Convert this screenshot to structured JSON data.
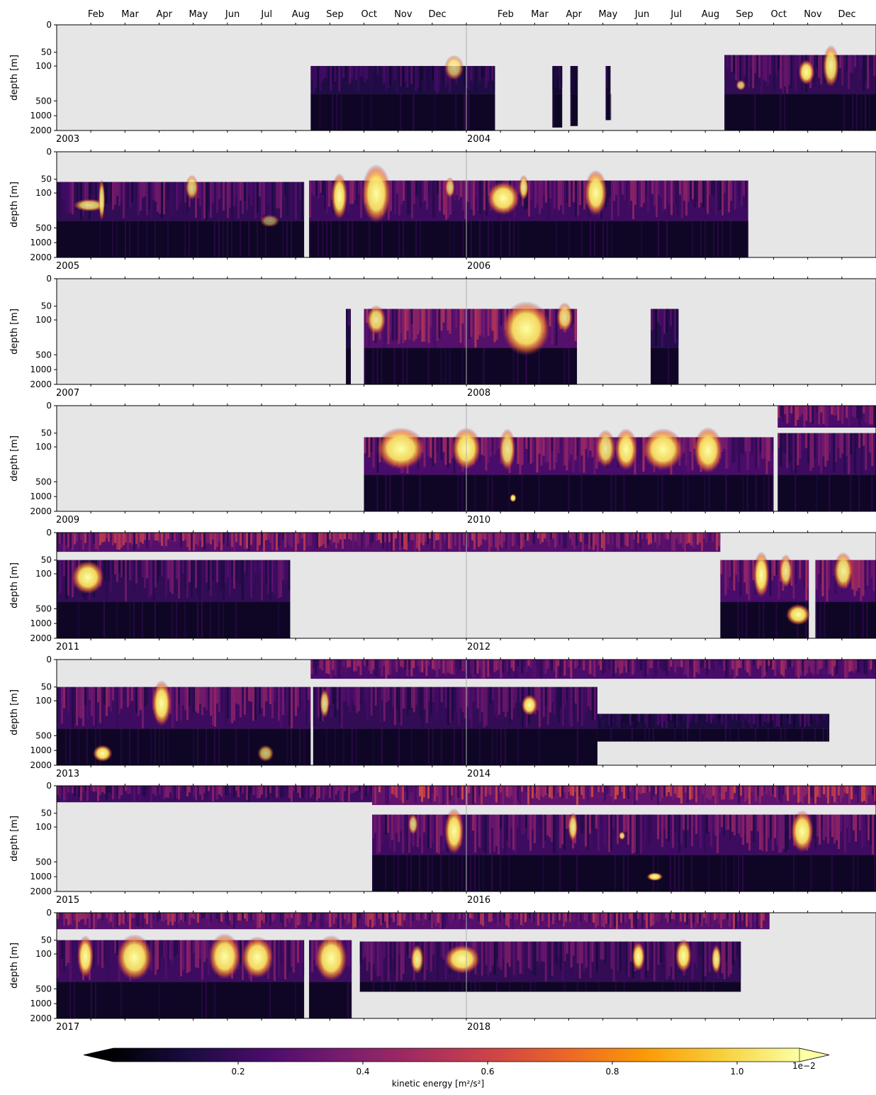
{
  "chart_data": {
    "type": "heatmap",
    "top_month_labels": [
      "Feb",
      "Mar",
      "Apr",
      "May",
      "Jun",
      "Jul",
      "Aug",
      "Sep",
      "Oct",
      "Nov",
      "Dec",
      "Feb",
      "Mar",
      "Apr",
      "May",
      "Jun",
      "Jul",
      "Aug",
      "Sep",
      "Oct",
      "Nov",
      "Dec"
    ],
    "ylabel": "depth [m]",
    "yticks": [
      "0",
      "50",
      "100",
      "500",
      "1000",
      "2000"
    ],
    "colors": {
      "nodata": "#e6e6e6",
      "axis": "#000000",
      "midline": "#b0b0b0"
    },
    "colormap": [
      "#000004",
      "#1b0c41",
      "#4a0c6b",
      "#781c6d",
      "#a52c60",
      "#cf4446",
      "#ed6925",
      "#fb9b06",
      "#f7d13d",
      "#fcffa4"
    ],
    "panels": [
      {
        "year1": "2003",
        "year2": "2004",
        "segments": [
          {
            "start": 0.31,
            "end": 0.535,
            "top": 100,
            "bottom": 2000,
            "intensity": 0.22
          },
          {
            "start": 0.605,
            "end": 0.617,
            "top": 100,
            "bottom": 1800,
            "intensity": 0.15
          },
          {
            "start": 0.627,
            "end": 0.636,
            "top": 100,
            "bottom": 1700,
            "intensity": 0.15
          },
          {
            "start": 0.67,
            "end": 0.676,
            "top": 100,
            "bottom": 1300,
            "intensity": 0.15
          },
          {
            "start": 0.815,
            "end": 1.0,
            "top": 60,
            "bottom": 2000,
            "intensity": 0.3
          }
        ],
        "blobs": [
          {
            "t": 0.485,
            "d": 120,
            "w": 0.012,
            "h": 0.12,
            "i": 0.75
          },
          {
            "t": 0.915,
            "d": 170,
            "w": 0.01,
            "h": 0.12,
            "i": 1.0
          },
          {
            "t": 0.945,
            "d": 100,
            "w": 0.01,
            "h": 0.2,
            "i": 0.95
          },
          {
            "t": 0.835,
            "d": 320,
            "w": 0.006,
            "h": 0.05,
            "i": 0.8
          }
        ]
      },
      {
        "year1": "2005",
        "year2": "2006",
        "segments": [
          {
            "start": 0.0,
            "end": 0.302,
            "top": 60,
            "bottom": 2000,
            "intensity": 0.3
          },
          {
            "start": 0.308,
            "end": 0.844,
            "top": 55,
            "bottom": 2000,
            "intensity": 0.35
          }
        ],
        "blobs": [
          {
            "t": 0.04,
            "d": 240,
            "w": 0.02,
            "h": 0.06,
            "i": 0.85
          },
          {
            "t": 0.055,
            "d": 180,
            "w": 0.004,
            "h": 0.2,
            "i": 0.9
          },
          {
            "t": 0.165,
            "d": 80,
            "w": 0.008,
            "h": 0.12,
            "i": 0.8
          },
          {
            "t": 0.345,
            "d": 140,
            "w": 0.01,
            "h": 0.22,
            "i": 1.0
          },
          {
            "t": 0.39,
            "d": 110,
            "w": 0.018,
            "h": 0.28,
            "i": 1.0
          },
          {
            "t": 0.48,
            "d": 80,
            "w": 0.006,
            "h": 0.1,
            "i": 0.8
          },
          {
            "t": 0.57,
            "d": 80,
            "w": 0.006,
            "h": 0.12,
            "i": 0.9
          },
          {
            "t": 0.545,
            "d": 160,
            "w": 0.02,
            "h": 0.16,
            "i": 1.0
          },
          {
            "t": 0.658,
            "d": 100,
            "w": 0.014,
            "h": 0.22,
            "i": 1.0
          },
          {
            "t": 0.26,
            "d": 420,
            "w": 0.012,
            "h": 0.06,
            "i": 0.55
          }
        ]
      },
      {
        "year1": "2007",
        "year2": "2008",
        "segments": [
          {
            "start": 0.353,
            "end": 0.359,
            "top": 60,
            "bottom": 2000,
            "intensity": 0.2
          },
          {
            "start": 0.375,
            "end": 0.635,
            "top": 60,
            "bottom": 2000,
            "intensity": 0.45
          },
          {
            "start": 0.725,
            "end": 0.759,
            "top": 60,
            "bottom": 2000,
            "intensity": 0.25
          }
        ],
        "blobs": [
          {
            "t": 0.573,
            "d": 200,
            "w": 0.03,
            "h": 0.26,
            "i": 1.0
          },
          {
            "t": 0.39,
            "d": 100,
            "w": 0.012,
            "h": 0.14,
            "i": 0.9
          },
          {
            "t": 0.62,
            "d": 90,
            "w": 0.01,
            "h": 0.14,
            "i": 0.85
          }
        ]
      },
      {
        "year1": "2009",
        "year2": "2010",
        "segments": [
          {
            "start": 0.375,
            "end": 0.875,
            "top": 65,
            "bottom": 2000,
            "intensity": 0.4
          },
          {
            "start": 0.88,
            "end": 1.0,
            "top": 0,
            "bottom": 40,
            "intensity": 0.4
          },
          {
            "start": 0.88,
            "end": 1.0,
            "top": 50,
            "bottom": 2000,
            "intensity": 0.35
          }
        ],
        "blobs": [
          {
            "t": 0.42,
            "d": 120,
            "w": 0.03,
            "h": 0.2,
            "i": 1.0
          },
          {
            "t": 0.5,
            "d": 120,
            "w": 0.018,
            "h": 0.2,
            "i": 1.0
          },
          {
            "t": 0.55,
            "d": 130,
            "w": 0.01,
            "h": 0.2,
            "i": 0.9
          },
          {
            "t": 0.67,
            "d": 120,
            "w": 0.012,
            "h": 0.18,
            "i": 0.9
          },
          {
            "t": 0.695,
            "d": 130,
            "w": 0.014,
            "h": 0.2,
            "i": 1.0
          },
          {
            "t": 0.74,
            "d": 130,
            "w": 0.025,
            "h": 0.2,
            "i": 1.0
          },
          {
            "t": 0.795,
            "d": 140,
            "w": 0.018,
            "h": 0.22,
            "i": 1.0
          },
          {
            "t": 0.557,
            "d": 1100,
            "w": 0.004,
            "h": 0.04,
            "i": 1.0
          }
        ]
      },
      {
        "year1": "2011",
        "year2": "2012",
        "segments": [
          {
            "start": 0.0,
            "end": 0.81,
            "top": 0,
            "bottom": 35,
            "intensity": 0.45
          },
          {
            "start": 0.0,
            "end": 0.285,
            "top": 50,
            "bottom": 2000,
            "intensity": 0.3
          },
          {
            "start": 0.81,
            "end": 0.918,
            "top": 50,
            "bottom": 2000,
            "intensity": 0.4
          },
          {
            "start": 0.926,
            "end": 1.0,
            "top": 50,
            "bottom": 2000,
            "intensity": 0.4
          }
        ],
        "blobs": [
          {
            "t": 0.038,
            "d": 140,
            "w": 0.02,
            "h": 0.16,
            "i": 1.0
          },
          {
            "t": 0.86,
            "d": 110,
            "w": 0.01,
            "h": 0.22,
            "i": 1.0
          },
          {
            "t": 0.905,
            "d": 700,
            "w": 0.015,
            "h": 0.1,
            "i": 1.0
          },
          {
            "t": 0.96,
            "d": 90,
            "w": 0.012,
            "h": 0.18,
            "i": 0.95
          },
          {
            "t": 0.89,
            "d": 90,
            "w": 0.008,
            "h": 0.16,
            "i": 0.9
          }
        ]
      },
      {
        "year1": "2013",
        "year2": "2014",
        "segments": [
          {
            "start": 0.31,
            "end": 1.0,
            "top": 0,
            "bottom": 35,
            "intensity": 0.4
          },
          {
            "start": 0.0,
            "end": 0.31,
            "top": 50,
            "bottom": 2000,
            "intensity": 0.35
          },
          {
            "start": 0.313,
            "end": 0.66,
            "top": 50,
            "bottom": 2000,
            "intensity": 0.3
          },
          {
            "start": 0.66,
            "end": 0.943,
            "top": 250,
            "bottom": 700,
            "intensity": 0.2
          }
        ],
        "blobs": [
          {
            "t": 0.128,
            "d": 130,
            "w": 0.012,
            "h": 0.22,
            "i": 1.0
          },
          {
            "t": 0.056,
            "d": 1200,
            "w": 0.012,
            "h": 0.08,
            "i": 1.0
          },
          {
            "t": 0.255,
            "d": 1200,
            "w": 0.01,
            "h": 0.08,
            "i": 0.75
          },
          {
            "t": 0.327,
            "d": 130,
            "w": 0.006,
            "h": 0.14,
            "i": 0.85
          },
          {
            "t": 0.577,
            "d": 150,
            "w": 0.01,
            "h": 0.1,
            "i": 1.0
          }
        ]
      },
      {
        "year1": "2015",
        "year2": "2016",
        "segments": [
          {
            "start": 0.0,
            "end": 0.385,
            "top": 0,
            "bottom": 30,
            "intensity": 0.35
          },
          {
            "start": 0.385,
            "end": 1.0,
            "top": 0,
            "bottom": 35,
            "intensity": 0.5
          },
          {
            "start": 0.385,
            "end": 1.0,
            "top": 55,
            "bottom": 2000,
            "intensity": 0.35
          }
        ],
        "blobs": [
          {
            "t": 0.435,
            "d": 90,
            "w": 0.006,
            "h": 0.1,
            "i": 0.8
          },
          {
            "t": 0.485,
            "d": 150,
            "w": 0.012,
            "h": 0.22,
            "i": 1.0
          },
          {
            "t": 0.63,
            "d": 100,
            "w": 0.006,
            "h": 0.14,
            "i": 0.9
          },
          {
            "t": 0.91,
            "d": 150,
            "w": 0.014,
            "h": 0.2,
            "i": 1.0
          },
          {
            "t": 0.73,
            "d": 1000,
            "w": 0.01,
            "h": 0.04,
            "i": 1.0
          },
          {
            "t": 0.69,
            "d": 200,
            "w": 0.004,
            "h": 0.04,
            "i": 0.9
          }
        ]
      },
      {
        "year1": "2017",
        "year2": "2018",
        "segments": [
          {
            "start": 0.0,
            "end": 0.87,
            "top": 0,
            "bottom": 30,
            "intensity": 0.45
          },
          {
            "start": 0.0,
            "end": 0.302,
            "top": 50,
            "bottom": 2000,
            "intensity": 0.35
          },
          {
            "start": 0.308,
            "end": 0.36,
            "top": 50,
            "bottom": 2000,
            "intensity": 0.35
          },
          {
            "start": 0.37,
            "end": 0.835,
            "top": 55,
            "bottom": 600,
            "intensity": 0.3
          }
        ],
        "blobs": [
          {
            "t": 0.035,
            "d": 130,
            "w": 0.01,
            "h": 0.2,
            "i": 1.0
          },
          {
            "t": 0.095,
            "d": 140,
            "w": 0.022,
            "h": 0.22,
            "i": 1.0
          },
          {
            "t": 0.205,
            "d": 130,
            "w": 0.02,
            "h": 0.22,
            "i": 1.0
          },
          {
            "t": 0.245,
            "d": 140,
            "w": 0.02,
            "h": 0.2,
            "i": 1.0
          },
          {
            "t": 0.335,
            "d": 150,
            "w": 0.02,
            "h": 0.22,
            "i": 1.0
          },
          {
            "t": 0.44,
            "d": 160,
            "w": 0.008,
            "h": 0.14,
            "i": 0.95
          },
          {
            "t": 0.495,
            "d": 160,
            "w": 0.022,
            "h": 0.14,
            "i": 1.0
          },
          {
            "t": 0.71,
            "d": 130,
            "w": 0.008,
            "h": 0.14,
            "i": 1.0
          },
          {
            "t": 0.765,
            "d": 120,
            "w": 0.01,
            "h": 0.16,
            "i": 1.0
          },
          {
            "t": 0.805,
            "d": 160,
            "w": 0.006,
            "h": 0.14,
            "i": 0.95
          }
        ]
      }
    ],
    "colorbar": {
      "ticks": [
        "0.2",
        "0.4",
        "0.6",
        "0.8",
        "1.0"
      ],
      "tick_values": [
        0.2,
        0.4,
        0.6,
        0.8,
        1.0
      ],
      "range": [
        0.0,
        1.1
      ],
      "label": "kinetic energy [m²/s²]",
      "exponent": "1e−2"
    }
  }
}
